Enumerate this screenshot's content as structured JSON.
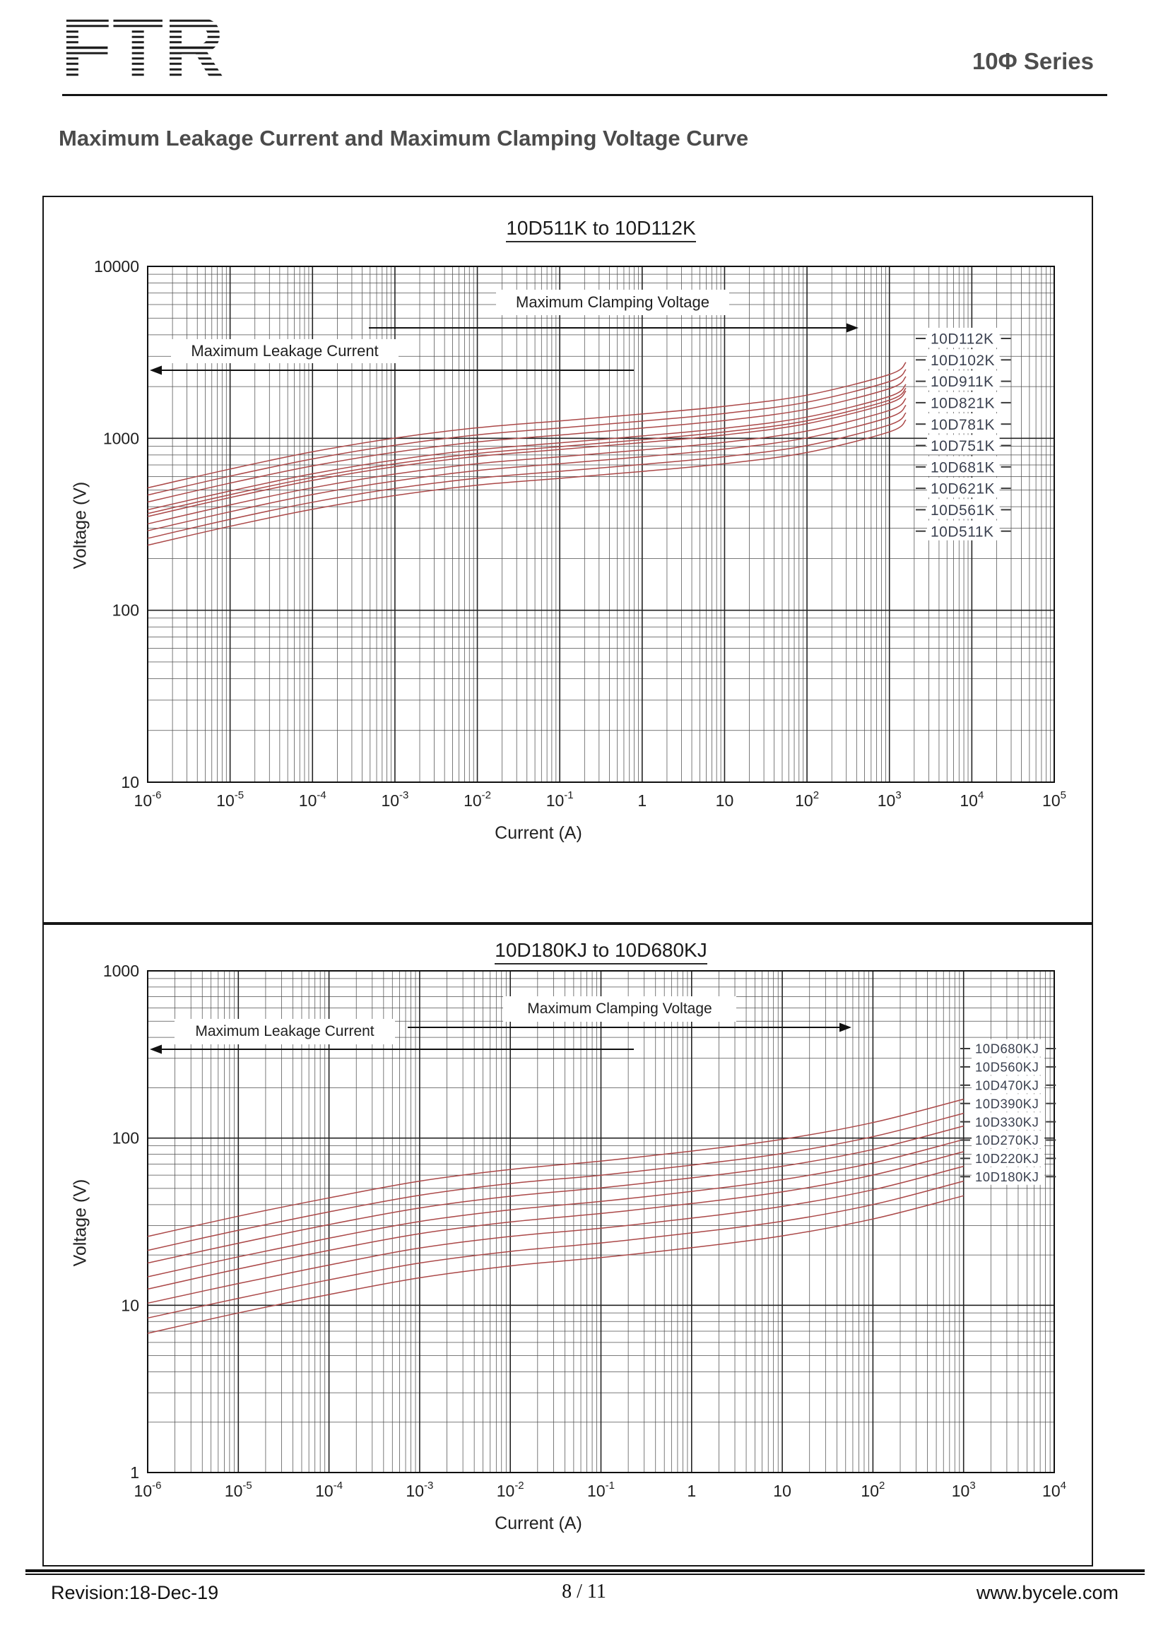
{
  "header": {
    "logo_text": "FTR",
    "series_label": "10Φ Series"
  },
  "page_title": "Maximum Leakage Current and Maximum Clamping Voltage Curve",
  "footer": {
    "revision": "Revision:18-Dec-19",
    "page": "8 / 11",
    "website": "www.bycele.com"
  },
  "charts": [
    {
      "title": "10D511K to 10D112K",
      "xlabel": "Current (A)",
      "ylabel": "Voltage (V)",
      "annotations": {
        "clamping": "Maximum Clamping Voltage",
        "leakage": "Maximum Leakage Current"
      },
      "legend": [
        "10D112K",
        "10D102K",
        "10D911K",
        "10D821K",
        "10D781K",
        "10D751K",
        "10D681K",
        "10D621K",
        "10D561K",
        "10D511K"
      ],
      "x_ticks": [
        {
          "t": -6,
          "base": "10",
          "exp": "-6"
        },
        {
          "t": -5,
          "base": "10",
          "exp": "-5"
        },
        {
          "t": -4,
          "base": "10",
          "exp": "-4"
        },
        {
          "t": -3,
          "base": "10",
          "exp": "-3"
        },
        {
          "t": -2,
          "base": "10",
          "exp": "-2"
        },
        {
          "t": -1,
          "base": "10",
          "exp": "-1"
        },
        {
          "t": 0,
          "base": "1"
        },
        {
          "t": 1,
          "base": "10"
        },
        {
          "t": 2,
          "base": "10",
          "exp": "2"
        },
        {
          "t": 3,
          "base": "10",
          "exp": "3"
        },
        {
          "t": 4,
          "base": "10",
          "exp": "4"
        },
        {
          "t": 5,
          "base": "10",
          "exp": "5"
        }
      ],
      "y_ticks": [
        {
          "e": 4,
          "label": "10000"
        },
        {
          "e": 3,
          "label": "1000"
        },
        {
          "e": 2,
          "label": "100"
        },
        {
          "e": 1,
          "label": "10"
        }
      ]
    },
    {
      "title": "10D180KJ to 10D680KJ",
      "xlabel": "Current (A)",
      "ylabel": "Voltage (V)",
      "annotations": {
        "clamping": "Maximum Clamping Voltage",
        "leakage": "Maximum Leakage Current"
      },
      "legend": [
        "10D680KJ",
        "10D560KJ",
        "10D470KJ",
        "10D390KJ",
        "10D330KJ",
        "10D270KJ",
        "10D220KJ",
        "10D180KJ"
      ],
      "x_ticks": [
        {
          "t": -6,
          "base": "10",
          "exp": "-6"
        },
        {
          "t": -5,
          "base": "10",
          "exp": "-5"
        },
        {
          "t": -4,
          "base": "10",
          "exp": "-4"
        },
        {
          "t": -3,
          "base": "10",
          "exp": "-3"
        },
        {
          "t": -2,
          "base": "10",
          "exp": "-2"
        },
        {
          "t": -1,
          "base": "10",
          "exp": "-1"
        },
        {
          "t": 0,
          "base": "1"
        },
        {
          "t": 1,
          "base": "10"
        },
        {
          "t": 2,
          "base": "10",
          "exp": "2"
        },
        {
          "t": 3,
          "base": "10",
          "exp": "3"
        },
        {
          "t": 4,
          "base": "10",
          "exp": "4"
        }
      ],
      "y_ticks": [
        {
          "e": 3,
          "label": "1000"
        },
        {
          "e": 2,
          "label": "100"
        },
        {
          "e": 1,
          "label": "10"
        },
        {
          "e": 0,
          "label": "1"
        }
      ]
    }
  ],
  "chart_data": [
    {
      "type": "line",
      "title": "10D511K to 10D112K",
      "xlabel": "Current (A)",
      "ylabel": "Voltage (V)",
      "x_scale": "log",
      "y_scale": "log",
      "x_range_A": [
        1e-06,
        100000
      ],
      "y_range_V": [
        10,
        10000
      ],
      "color": "#ab4848",
      "x_log10_A": [
        -6,
        -5,
        -4,
        -3,
        -2,
        -1,
        0,
        1,
        2,
        3,
        3.2
      ],
      "series": [
        {
          "name": "10D112K",
          "voltages": [
            515,
            663,
            835,
            1003,
            1152,
            1263,
            1385,
            1536,
            1784,
            2352,
            2763
          ]
        },
        {
          "name": "10D102K",
          "voltages": [
            468,
            603,
            759,
            912,
            1047,
            1148,
            1259,
            1396,
            1622,
            2138,
            2512
          ]
        },
        {
          "name": "10D911K",
          "voltages": [
            426,
            549,
            691,
            830,
            953,
            1045,
            1146,
            1270,
            1476,
            1946,
            2286
          ]
        },
        {
          "name": "10D821K",
          "voltages": [
            384,
            494,
            622,
            748,
            859,
            941,
            1032,
            1145,
            1330,
            1753,
            2060
          ]
        },
        {
          "name": "10D781K",
          "voltages": [
            365,
            470,
            592,
            711,
            817,
            895,
            982,
            1089,
            1265,
            1668,
            1959
          ]
        },
        {
          "name": "10D751K",
          "voltages": [
            351,
            452,
            569,
            684,
            785,
            861,
            944,
            1047,
            1217,
            1604,
            1884
          ]
        },
        {
          "name": "10D681K",
          "voltages": [
            318,
            410,
            516,
            620,
            712,
            781,
            856,
            949,
            1103,
            1454,
            1708
          ]
        },
        {
          "name": "10D621K",
          "voltages": [
            290,
            374,
            471,
            565,
            649,
            712,
            781,
            866,
            1006,
            1326,
            1557
          ]
        },
        {
          "name": "10D561K",
          "voltages": [
            262,
            338,
            425,
            511,
            586,
            643,
            705,
            782,
            908,
            1197,
            1407
          ]
        },
        {
          "name": "10D511K",
          "voltages": [
            239,
            308,
            387,
            465,
            534,
            585,
            642,
            712,
            827,
            1090,
            1281
          ]
        }
      ]
    },
    {
      "type": "line",
      "title": "10D180KJ to 10D680KJ",
      "xlabel": "Current (A)",
      "ylabel": "Voltage (V)",
      "x_scale": "log",
      "y_scale": "log",
      "x_range_A": [
        1e-06,
        10000
      ],
      "y_range_V": [
        1,
        1000
      ],
      "color": "#ab4848",
      "x_log10_A": [
        -6,
        -5,
        -4,
        -3,
        -2,
        -1,
        0,
        1,
        2,
        3
      ],
      "series": [
        {
          "name": "10D680KJ",
          "voltages": [
            25.8,
            34.1,
            43.9,
            55.3,
            64.9,
            72.9,
            83.6,
            98.3,
            123.8,
            170.8
          ]
        },
        {
          "name": "10D560KJ",
          "voltages": [
            21.3,
            28.1,
            36.2,
            45.5,
            53.5,
            60.0,
            68.9,
            80.9,
            101.9,
            140.7
          ]
        },
        {
          "name": "10D470KJ",
          "voltages": [
            17.9,
            23.5,
            30.4,
            38.2,
            44.9,
            50.4,
            57.8,
            67.9,
            85.5,
            118.1
          ]
        },
        {
          "name": "10D390KJ",
          "voltages": [
            14.8,
            19.5,
            25.2,
            31.7,
            37.2,
            41.8,
            48.0,
            56.4,
            71.0,
            98.0
          ]
        },
        {
          "name": "10D330KJ",
          "voltages": [
            12.5,
            16.5,
            21.3,
            26.8,
            31.5,
            35.4,
            40.6,
            47.7,
            60.1,
            82.9
          ]
        },
        {
          "name": "10D270KJ",
          "voltages": [
            10.3,
            13.5,
            17.4,
            22.0,
            25.8,
            28.9,
            33.2,
            39.0,
            49.1,
            67.8
          ]
        },
        {
          "name": "10D220KJ",
          "voltages": [
            8.4,
            11.0,
            14.2,
            17.9,
            21.0,
            23.6,
            27.1,
            31.8,
            40.0,
            55.3
          ]
        },
        {
          "name": "10D180KJ",
          "voltages": [
            6.8,
            9.0,
            11.6,
            14.6,
            17.2,
            19.3,
            22.1,
            26.0,
            32.8,
            45.2
          ]
        }
      ]
    }
  ]
}
